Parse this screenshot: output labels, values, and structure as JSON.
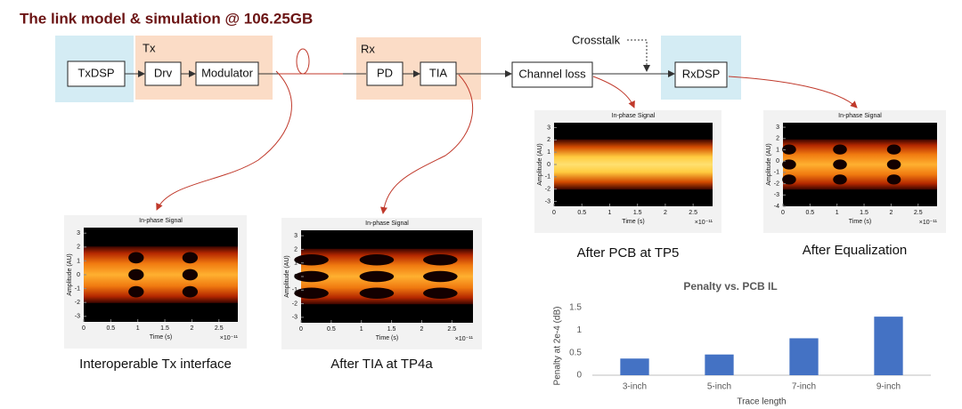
{
  "title": "The link model & simulation @ 106.25GB",
  "diagram": {
    "groups": {
      "tx": "Tx",
      "rx": "Rx"
    },
    "nodes": {
      "txdsp": "TxDSP",
      "drv": "Drv",
      "modulator": "Modulator",
      "pd": "PD",
      "tia": "TIA",
      "channel_loss": "Channel loss",
      "rxdsp": "RxDSP"
    },
    "crosstalk": "Crosstalk"
  },
  "eye_plots": [
    {
      "title": "In-phase Signal",
      "ylabel": "Amplitude (AU)",
      "xlabel": "Time (s)",
      "x_multiplier": "×10⁻¹¹",
      "xlim": [
        0,
        2.85
      ],
      "ylim": [
        -3.4,
        3.4
      ],
      "xticks": [
        0,
        0.5,
        1,
        1.5,
        2,
        2.5
      ],
      "yticks": [
        3,
        2,
        1,
        0,
        -1,
        -2,
        -3
      ],
      "caption": "Interoperable  Tx interface"
    },
    {
      "title": "In-phase Signal",
      "ylabel": "Amplitude (AU)",
      "xlabel": "Time (s)",
      "x_multiplier": "×10⁻¹¹",
      "xlim": [
        0,
        2.85
      ],
      "ylim": [
        -3.4,
        3.4
      ],
      "xticks": [
        0,
        0.5,
        1,
        1.5,
        2,
        2.5
      ],
      "yticks": [
        3,
        2,
        1,
        0,
        -1,
        -2,
        -3
      ],
      "caption": "After TIA at TP4a"
    },
    {
      "title": "In-phase Signal",
      "ylabel": "Amplitude (AU)",
      "xlabel": "Time (s)",
      "x_multiplier": "×10⁻¹¹",
      "xlim": [
        0,
        2.85
      ],
      "ylim": [
        -3.4,
        3.4
      ],
      "xticks": [
        0,
        0.5,
        1,
        1.5,
        2,
        2.5
      ],
      "yticks": [
        3,
        2,
        1,
        0,
        -1,
        -2,
        -3
      ],
      "caption": "After PCB at TP5"
    },
    {
      "title": "In-phase Signal",
      "ylabel": "Amplitude (AU)",
      "xlabel": "Time (s)",
      "x_multiplier": "×10⁻¹¹",
      "xlim": [
        0,
        2.85
      ],
      "ylim": [
        -4,
        3.4
      ],
      "xticks": [
        0,
        0.5,
        1,
        1.5,
        2,
        2.5
      ],
      "yticks": [
        3,
        2,
        1,
        0,
        -1,
        -2,
        -3,
        -4
      ],
      "caption": "After Equalization"
    }
  ],
  "chart_data": {
    "type": "bar",
    "title": "Penalty vs. PCB IL",
    "y_label": "Penalty at 2e-4 (dB)",
    "x_label": "Trace length",
    "categories": [
      "3-inch",
      "5-inch",
      "7-inch",
      "9-inch"
    ],
    "values": [
      0.37,
      0.46,
      0.82,
      1.3
    ],
    "color": "#4472c4",
    "ylim": [
      0,
      1.5
    ],
    "yticks": [
      0,
      0.5,
      1,
      1.5
    ],
    "grid": false
  }
}
